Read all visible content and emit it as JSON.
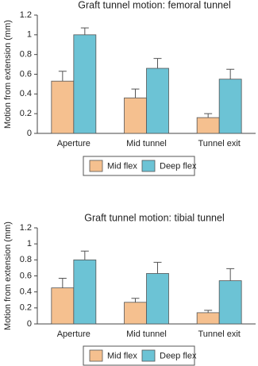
{
  "chart_data": [
    {
      "type": "bar",
      "title": "Graft tunnel motion: femoral tunnel",
      "y_label": "Motion from extension (mm)",
      "categories": [
        "Aperture",
        "Mid tunnel",
        "Tunnel exit"
      ],
      "series": [
        {
          "name": "Mid flex",
          "color": "#f5c08f",
          "values": [
            0.53,
            0.36,
            0.16
          ],
          "errors": [
            0.1,
            0.09,
            0.04
          ]
        },
        {
          "name": "Deep flex",
          "color": "#6cc3d5",
          "values": [
            1.0,
            0.66,
            0.55
          ],
          "errors": [
            0.07,
            0.1,
            0.1
          ]
        }
      ],
      "ylim": [
        0,
        1.2
      ],
      "yticks": [
        0,
        0.2,
        0.4,
        0.6,
        0.8,
        1,
        1.2
      ],
      "legend": "bottom"
    },
    {
      "type": "bar",
      "title": "Graft tunnel motion: tibial tunnel",
      "y_label": "Motion from extension (mm)",
      "categories": [
        "Aperture",
        "Mid tunnel",
        "Tunnel exit"
      ],
      "series": [
        {
          "name": "Mid flex",
          "color": "#f5c08f",
          "values": [
            0.45,
            0.27,
            0.14
          ],
          "errors": [
            0.12,
            0.05,
            0.03
          ]
        },
        {
          "name": "Deep flex",
          "color": "#6cc3d5",
          "values": [
            0.8,
            0.63,
            0.54
          ],
          "errors": [
            0.11,
            0.14,
            0.15
          ]
        }
      ],
      "ylim": [
        0,
        1.2
      ],
      "yticks": [
        0,
        0.2,
        0.4,
        0.6,
        0.8,
        1,
        1.2
      ],
      "legend": "bottom"
    }
  ]
}
